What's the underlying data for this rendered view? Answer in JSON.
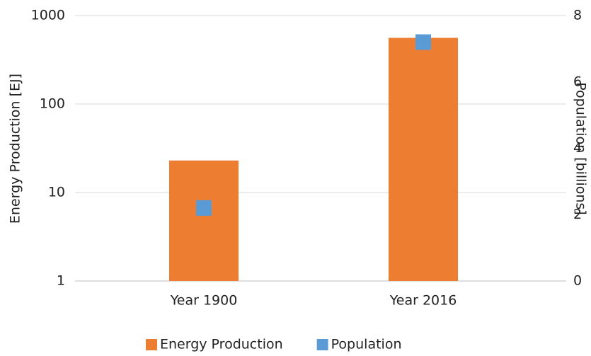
{
  "chart_data": {
    "type": "bar",
    "categories": [
      "Year 1900",
      "Year 2016"
    ],
    "series": [
      {
        "name": "Energy Production",
        "color": "#ED7D31",
        "values": [
          23,
          560
        ]
      },
      {
        "name": "Population",
        "color": "#5B9BD5",
        "values": [
          2.2,
          7.2
        ],
        "axis": "y2",
        "marker": "square"
      }
    ],
    "ylabel": "Energy Production [EJ]",
    "y2label": "Population [billions]",
    "ylim": [
      1,
      1000
    ],
    "yticks": [
      1,
      10,
      100,
      1000
    ],
    "yscale": "log",
    "y2lim": [
      0,
      8
    ],
    "y2ticks": [
      0,
      2,
      4,
      6,
      8
    ],
    "grid": true,
    "legend": "bottom"
  }
}
